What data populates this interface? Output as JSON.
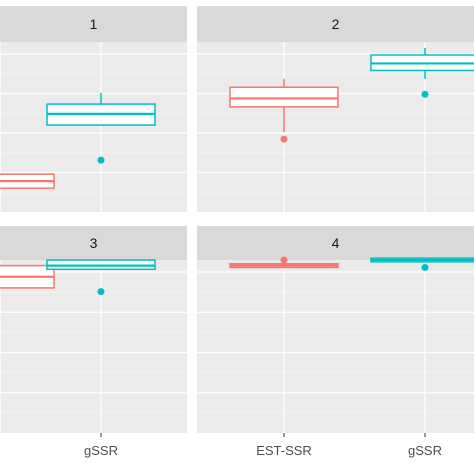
{
  "chart_data": {
    "type": "box",
    "title": "",
    "xlabel": "",
    "ylabel": "",
    "categories": [
      "EST-SSR",
      "gSSR"
    ],
    "visible_x_tick_labels": [
      {
        "facet": "3",
        "category": "gSSR",
        "label": "gSSR"
      },
      {
        "facet": "4",
        "category": "EST-SSR",
        "label": "EST-SSR"
      },
      {
        "facet": "4",
        "category": "gSSR",
        "label": "gSSR"
      }
    ],
    "ylim": [
      0,
      100
    ],
    "grid": true,
    "legend": "none",
    "colors": {
      "EST-SSR": "#F8766D",
      "gSSR": "#00BFC4",
      "panel_bg": "#EBEBEB",
      "strip_bg": "#D9D9D9",
      "grid_major": "#FFFFFF",
      "grid_minor": "#F4F4F4"
    },
    "facets": [
      {
        "label": "1",
        "boxes": [
          {
            "category": "EST-SSR",
            "q1": 17,
            "median": 22,
            "q3": 27,
            "whisker_low": 17,
            "whisker_high": 27,
            "outliers": []
          },
          {
            "category": "gSSR",
            "q1": 62,
            "median": 70,
            "q3": 77,
            "whisker_low": 62,
            "whisker_high": 85,
            "outliers": [
              37
            ]
          }
        ]
      },
      {
        "label": "2",
        "boxes": [
          {
            "category": "EST-SSR",
            "q1": 75,
            "median": 81,
            "q3": 89,
            "whisker_low": 57,
            "whisker_high": 95,
            "outliers": [
              52
            ]
          },
          {
            "category": "gSSR",
            "q1": 101,
            "median": 106,
            "q3": 112,
            "whisker_low": 95,
            "whisker_high": 117,
            "outliers": [
              84
            ]
          }
        ]
      },
      {
        "label": "3",
        "boxes": [
          {
            "category": "EST-SSR",
            "q1": 78,
            "median": 84,
            "q3": 90,
            "whisker_low": 78,
            "whisker_high": 90,
            "outliers": []
          },
          {
            "category": "gSSR",
            "q1": 88,
            "median": 90,
            "q3": 93,
            "whisker_low": 88,
            "whisker_high": 93,
            "outliers": [
              76
            ]
          }
        ]
      },
      {
        "label": "4",
        "boxes": [
          {
            "category": "EST-SSR",
            "q1": 89,
            "median": 90,
            "q3": 91,
            "whisker_low": 89,
            "whisker_high": 91,
            "outliers": [
              93
            ]
          },
          {
            "category": "gSSR",
            "q1": 92,
            "median": 93,
            "q3": 94,
            "whisker_low": 92,
            "whisker_high": 94,
            "outliers": [
              89
            ]
          }
        ]
      }
    ]
  }
}
